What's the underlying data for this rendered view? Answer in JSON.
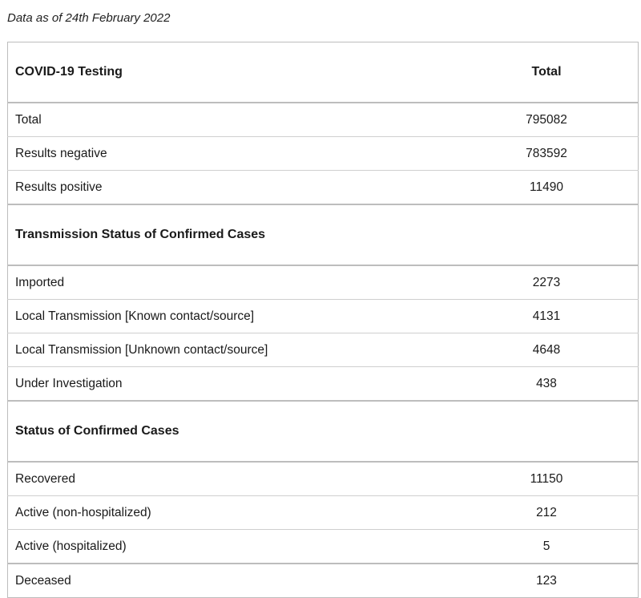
{
  "as_of": "Data as of 24th February 2022",
  "table": {
    "header": {
      "label": "COVID-19 Testing",
      "value": "Total"
    },
    "testing": [
      {
        "label": "Total",
        "value": "795082"
      },
      {
        "label": "Results negative",
        "value": "783592"
      },
      {
        "label": "Results positive",
        "value": "11490"
      }
    ],
    "transmission": {
      "title": "Transmission Status of Confirmed Cases",
      "rows": [
        {
          "label": "Imported",
          "value": "2273"
        },
        {
          "label": "Local Transmission [Known contact/source]",
          "value": "4131"
        },
        {
          "label": "Local Transmission [Unknown contact/source]",
          "value": "4648"
        },
        {
          "label": "Under Investigation",
          "value": "438"
        }
      ]
    },
    "status": {
      "title": "Status of Confirmed Cases",
      "rows": [
        {
          "label": "Recovered",
          "value": "11150"
        },
        {
          "label": "Active (non-hospitalized)",
          "value": "212"
        },
        {
          "label": "Active (hospitalized)",
          "value": "5"
        },
        {
          "label": "Deceased",
          "value": "123"
        }
      ]
    }
  }
}
